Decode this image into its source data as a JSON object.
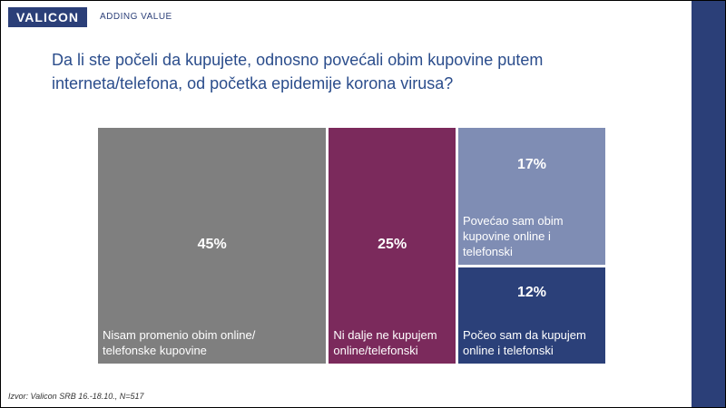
{
  "chart_data": {
    "type": "treemap",
    "logo": "VALICON",
    "tagline": "ADDING VALUE",
    "title": "Da li ste počeli da kupujete, odnosno povećali obim kupovine putem interneta/telefona, od početka epidemije korona virusa?",
    "categories": [
      "Nisam promenio obim online/\ntelefonske kupovine",
      "Ni dalje ne kupujem\nonline/telefonski",
      "Povećao sam obim\nkupovine online i\ntelefonski",
      "Počeo sam da kupujem\nonline i telefonski"
    ],
    "values": [
      45,
      25,
      17,
      12
    ],
    "value_labels": [
      "45%",
      "25%",
      "17%",
      "12%"
    ],
    "colors": [
      "#7f7f7f",
      "#7b2a5c",
      "#7f8db4",
      "#2b4079"
    ],
    "source": "Izvor: Valicon SRB 16.-18.10., N=517"
  }
}
